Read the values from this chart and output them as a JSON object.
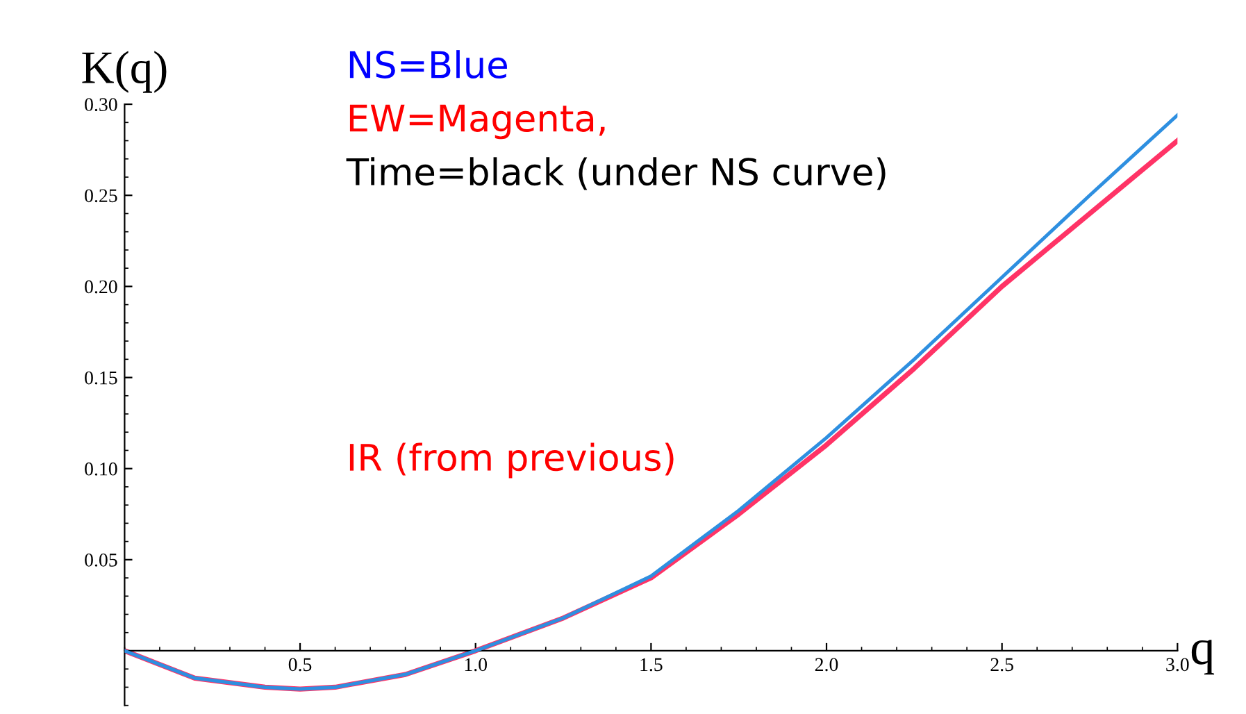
{
  "chart_data": {
    "type": "line",
    "xlabel": "q",
    "ylabel": "K(q)",
    "x": [
      0,
      0.2,
      0.4,
      0.5,
      0.6,
      0.8,
      1.0,
      1.25,
      1.5,
      1.75,
      2.0,
      2.25,
      2.5,
      2.75,
      3.0
    ],
    "series": [
      {
        "color": "#2e8fe0",
        "values": [
          0,
          -0.015,
          -0.02,
          -0.021,
          -0.02,
          -0.013,
          0,
          0.018,
          0.041,
          0.077,
          0.117,
          0.16,
          0.205,
          0.25,
          0.294
        ]
      },
      {
        "color": "#ff3366",
        "values": [
          0,
          -0.015,
          -0.02,
          -0.021,
          -0.02,
          -0.013,
          0,
          0.018,
          0.04,
          0.075,
          0.113,
          0.155,
          0.2,
          0.24,
          0.28
        ]
      }
    ],
    "xlim": [
      0,
      3.0
    ],
    "ylim": [
      -0.03,
      0.3
    ],
    "xticks": [
      0.5,
      {
        "value": 1.0,
        "label": "1.0"
      },
      1.5,
      {
        "value": 2.0,
        "label": "2.0"
      },
      2.5,
      {
        "value": 3.0,
        "label": "3.0"
      }
    ],
    "yticks": [
      0.05,
      {
        "value": 0.1,
        "label": "0.10"
      },
      0.15,
      {
        "value": 0.2,
        "label": "0.20"
      },
      0.25,
      {
        "value": 0.3,
        "label": "0.30"
      }
    ],
    "grid": false,
    "legend": false,
    "marker": "none",
    "line_style": "solid",
    "annotations": [
      "NS=Blue",
      "EW=Magenta,",
      "Time=black (under NS curve)",
      "IR (from previous)"
    ]
  }
}
